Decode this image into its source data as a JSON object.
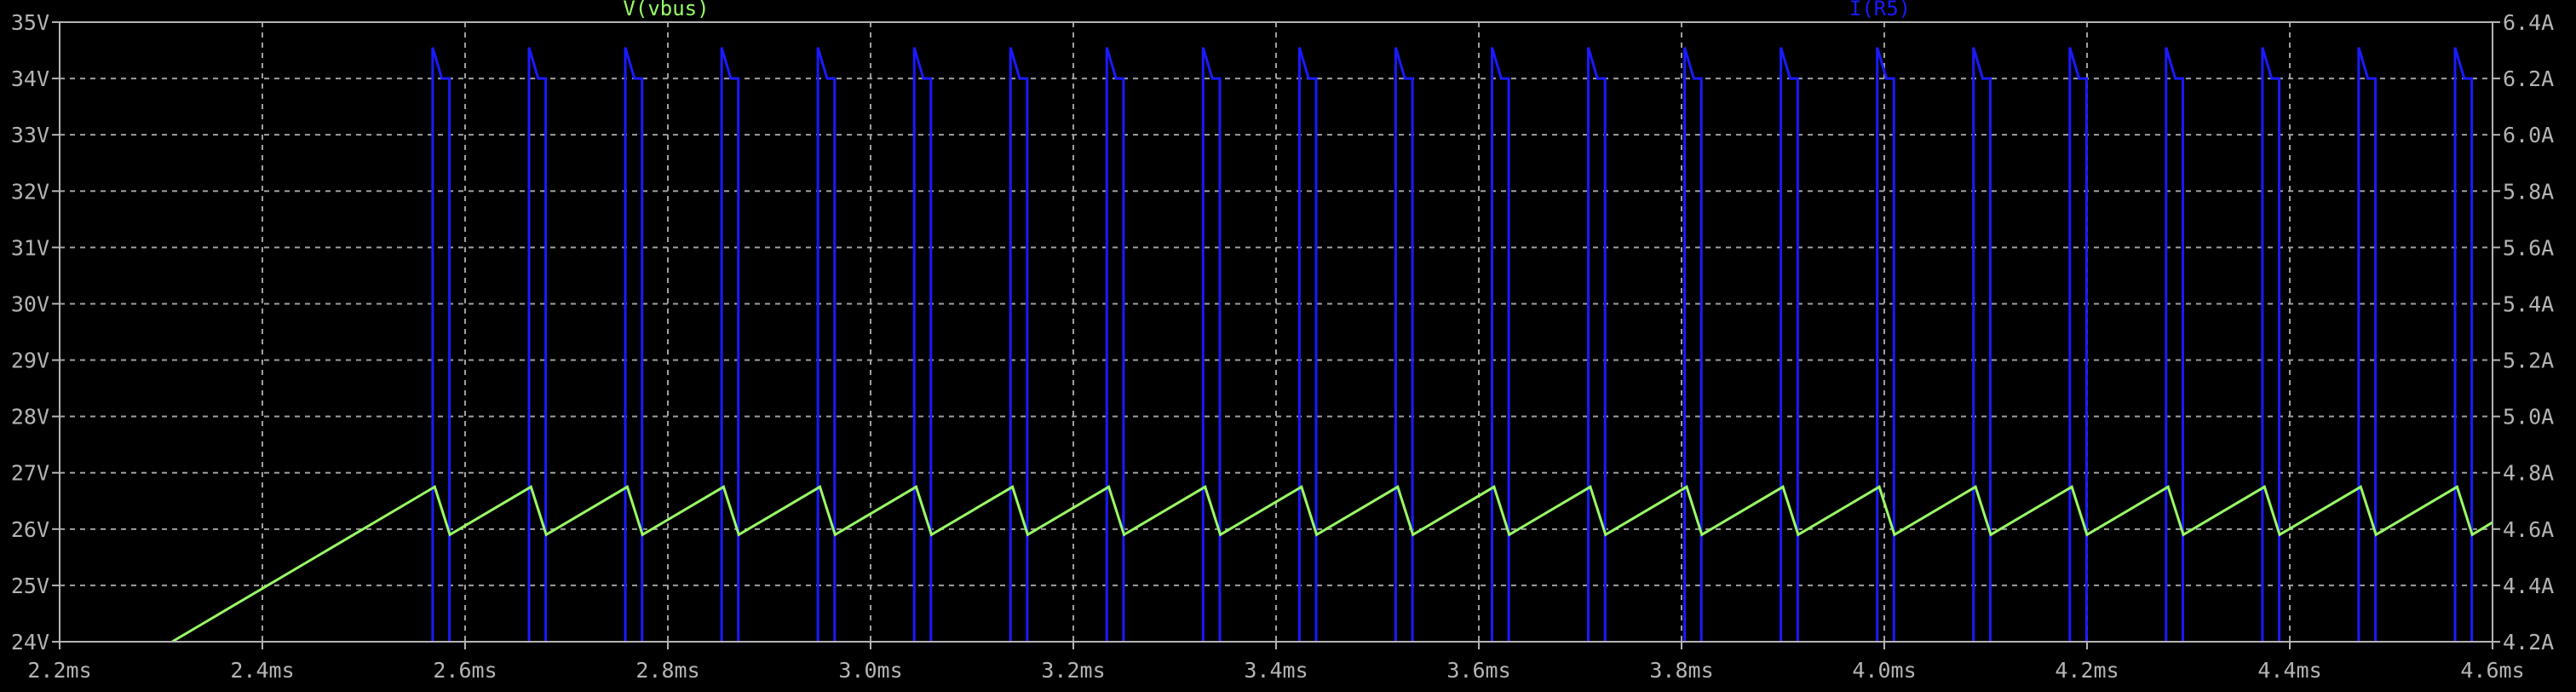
{
  "chart_data": {
    "type": "line",
    "xlabel": "",
    "ylabel_left": "",
    "ylabel_right": "",
    "xlim": [
      2.2,
      4.6
    ],
    "ylim_left": [
      24,
      35
    ],
    "ylim_right": [
      4.2,
      6.4
    ],
    "grid": true,
    "x_ticks": [
      2.2,
      2.4,
      2.6,
      2.8,
      3.0,
      3.2,
      3.4,
      3.6,
      3.8,
      4.0,
      4.2,
      4.4,
      4.6
    ],
    "x_tick_labels": [
      "2.2ms",
      "2.4ms",
      "2.6ms",
      "2.8ms",
      "3.0ms",
      "3.2ms",
      "3.4ms",
      "3.6ms",
      "3.8ms",
      "4.0ms",
      "4.2ms",
      "4.4ms",
      "4.6ms"
    ],
    "y_left_ticks": [
      24,
      25,
      26,
      27,
      28,
      29,
      30,
      31,
      32,
      33,
      34,
      35
    ],
    "y_left_tick_labels": [
      "24V",
      "25V",
      "26V",
      "27V",
      "28V",
      "29V",
      "30V",
      "31V",
      "32V",
      "33V",
      "34V",
      "35V"
    ],
    "y_right_ticks": [
      4.2,
      4.4,
      4.6,
      4.8,
      5.0,
      5.2,
      5.4,
      5.6,
      5.8,
      6.0,
      6.2,
      6.4
    ],
    "y_right_tick_labels": [
      "4.2A",
      "4.4A",
      "4.6A",
      "4.8A",
      "5.0A",
      "5.2A",
      "5.4A",
      "5.6A",
      "5.8A",
      "6.0A",
      "6.2A",
      "6.4A"
    ],
    "series": [
      {
        "name": "V(vbus)",
        "axis": "left",
        "color": "#99ff66",
        "x": [
          2.311,
          2.57,
          2.585,
          2.665,
          2.68,
          2.76,
          2.775,
          2.855,
          2.87,
          2.95,
          2.965,
          3.045,
          3.06,
          3.14,
          3.155,
          3.235,
          3.25,
          3.33,
          3.345,
          3.425,
          3.44,
          3.52,
          3.535,
          3.615,
          3.63,
          3.71,
          3.725,
          3.805,
          3.82,
          3.9,
          3.915,
          3.995,
          4.01,
          4.09,
          4.105,
          4.185,
          4.2,
          4.28,
          4.295,
          4.375,
          4.39,
          4.47,
          4.485,
          4.565,
          4.58,
          4.6
        ],
        "y": [
          24.0,
          26.75,
          25.9,
          26.75,
          25.9,
          26.75,
          25.9,
          26.75,
          25.9,
          26.75,
          25.9,
          26.75,
          25.9,
          26.75,
          25.9,
          26.75,
          25.9,
          26.75,
          25.9,
          26.75,
          25.9,
          26.75,
          25.9,
          26.75,
          25.9,
          26.75,
          25.9,
          26.75,
          25.9,
          26.75,
          25.9,
          26.75,
          25.9,
          26.75,
          25.9,
          26.75,
          25.9,
          26.75,
          25.9,
          26.75,
          25.9,
          26.75,
          25.9,
          26.75,
          25.9,
          26.12
        ]
      },
      {
        "name": "I(R5)",
        "axis": "right",
        "color": "#1a1aff",
        "pulse_starts": [
          2.568,
          2.663,
          2.758,
          2.853,
          2.948,
          3.043,
          3.138,
          3.233,
          3.328,
          3.423,
          3.518,
          3.613,
          3.708,
          3.803,
          3.898,
          3.993,
          4.088,
          4.183,
          4.278,
          4.373,
          4.468,
          4.563
        ],
        "pulse_width": 0.0165,
        "baseline": 4.2,
        "peak": 6.31,
        "shoulder": 6.2
      }
    ]
  }
}
